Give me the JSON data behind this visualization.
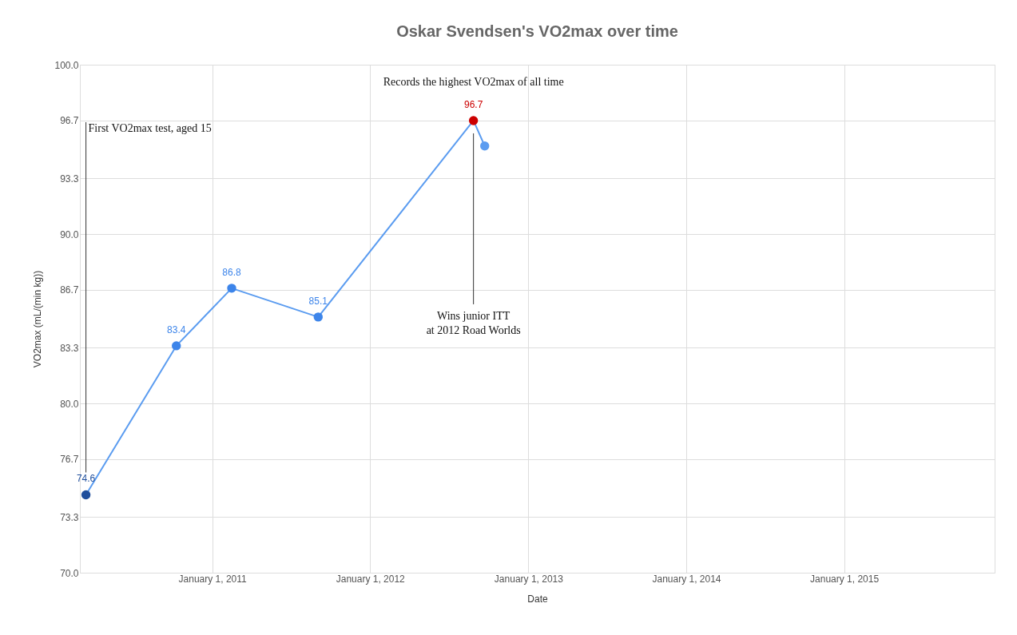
{
  "chart_data": {
    "type": "line",
    "title": "Oskar Svendsen's VO2max over time",
    "xlabel": "Date",
    "ylabel": "VO2max (mL/(min kg))",
    "x": [
      "2010-03-15",
      "2010-10-10",
      "2011-02-15",
      "2011-09-03",
      "2012-08-27",
      "2012-09-22"
    ],
    "series": [
      {
        "color": "#5b9cf0",
        "values": [
          74.6,
          83.4,
          86.8,
          85.1,
          96.7,
          95.2
        ],
        "colors": [
          "#1f4e9c",
          "#3d85ea",
          "#3d85ea",
          "#3d85ea",
          "#cc0000",
          "#5b9cf0"
        ],
        "value_labels": [
          "74.6",
          "83.4",
          "86.8",
          "85.1",
          "96.7",
          null
        ]
      }
    ],
    "annotations": [
      "First VO2max test, aged 15",
      "Wins junior ITT\nat 2012 Road Worlds",
      "Records the highest VO2max of all time"
    ],
    "xlim": [
      "2010-03-01",
      "2015-12-15"
    ],
    "xticks": [
      {
        "value": "2011-01-01",
        "label": "January 1, 2011"
      },
      {
        "value": "2012-01-01",
        "label": "January 1, 2012"
      },
      {
        "value": "2013-01-01",
        "label": "January 1, 2013"
      },
      {
        "value": "2014-01-01",
        "label": "January 1, 2014"
      },
      {
        "value": "2015-01-01",
        "label": "January 1, 2015"
      }
    ],
    "ylim": [
      70,
      100
    ],
    "yticks": [
      {
        "value": 70,
        "label": "70.0"
      },
      {
        "value": 73.3,
        "label": "73.3"
      },
      {
        "value": 76.7,
        "label": "76.7"
      },
      {
        "value": 80,
        "label": "80.0"
      },
      {
        "value": 83.3,
        "label": "83.3"
      },
      {
        "value": 86.7,
        "label": "86.7"
      },
      {
        "value": 90,
        "label": "90.0"
      },
      {
        "value": 93.3,
        "label": "93.3"
      },
      {
        "value": 96.7,
        "label": "96.7"
      },
      {
        "value": 100,
        "label": "100.0"
      }
    ],
    "grid": true,
    "marker": "circle",
    "line_style": "solid"
  }
}
